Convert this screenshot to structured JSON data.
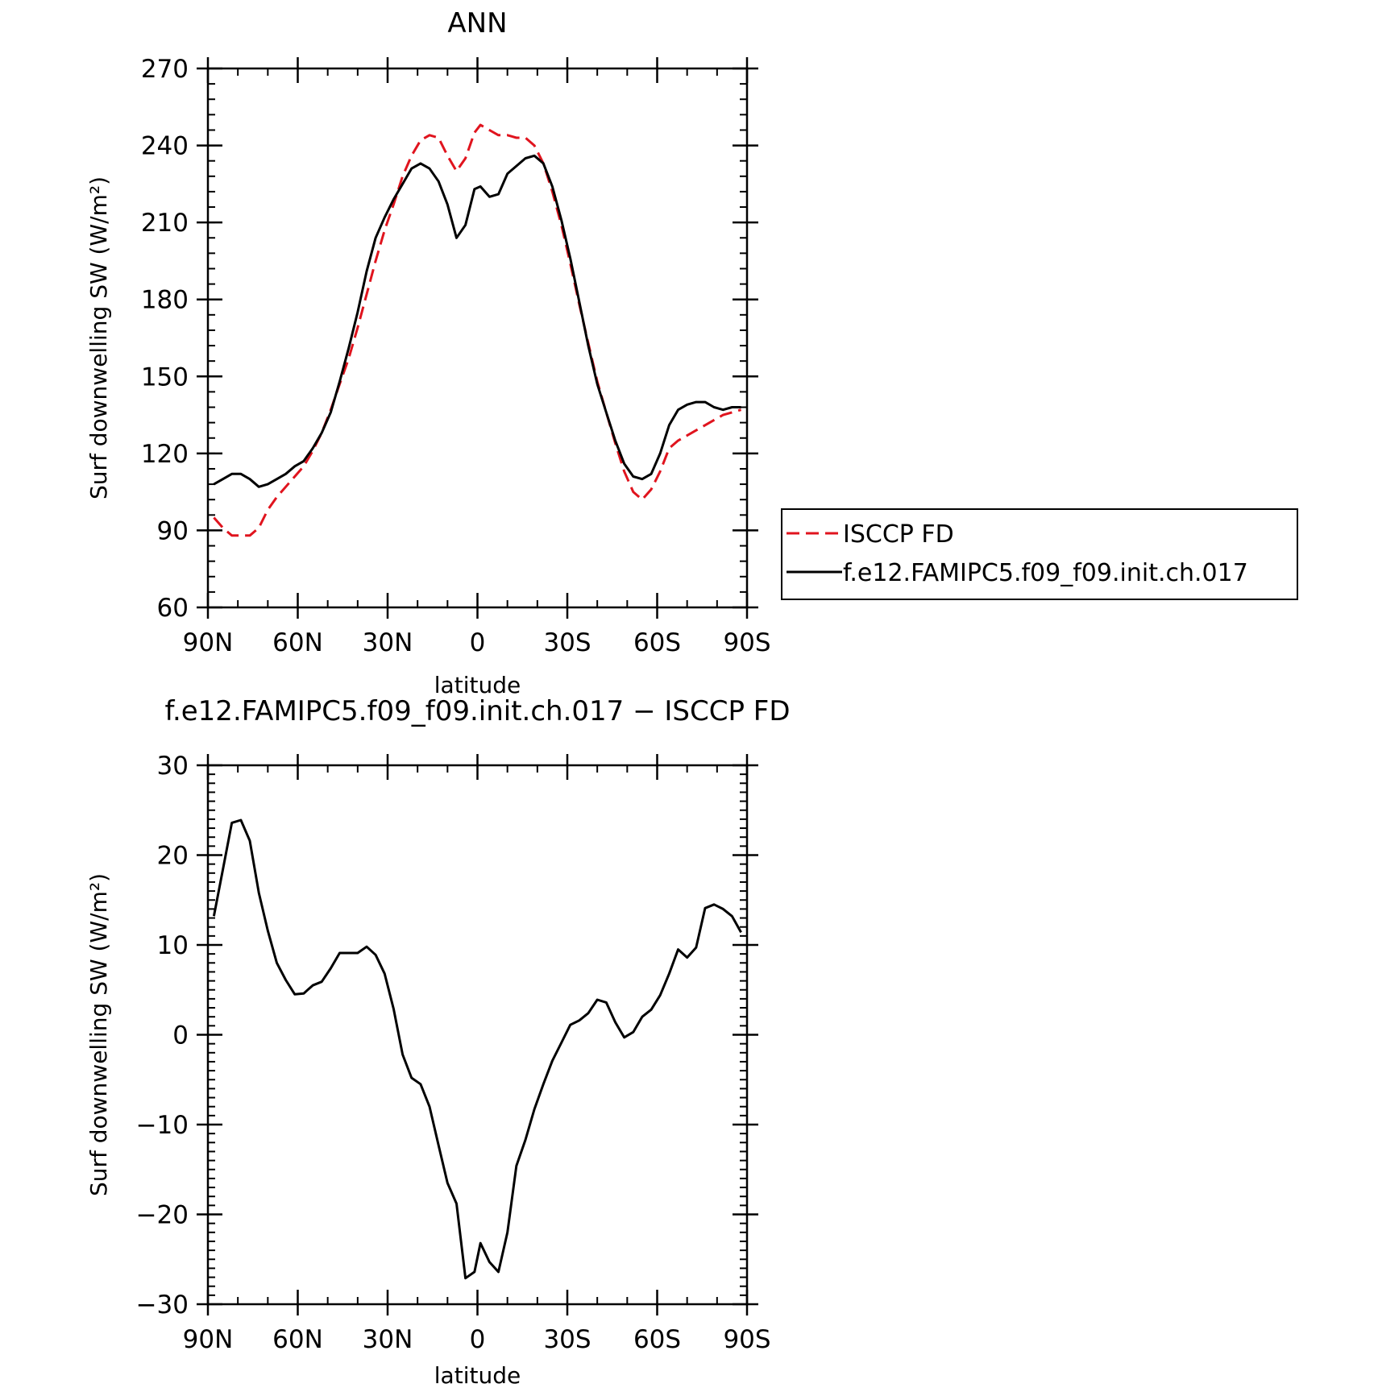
{
  "chart_data": [
    {
      "type": "line",
      "title": "ANN",
      "xlabel": "latitude",
      "ylabel": "Surf downwelling SW (W/m²)",
      "xlim": [
        90,
        -90
      ],
      "ylim": [
        60,
        270
      ],
      "xticks": [
        {
          "value": 90,
          "label": "90N"
        },
        {
          "value": 60,
          "label": "60N"
        },
        {
          "value": 30,
          "label": "30N"
        },
        {
          "value": 0,
          "label": "0"
        },
        {
          "value": -30,
          "label": "30S"
        },
        {
          "value": -60,
          "label": "60S"
        },
        {
          "value": -90,
          "label": "90S"
        }
      ],
      "yticks": [
        60,
        90,
        120,
        150,
        180,
        210,
        240,
        270
      ],
      "legend_position": "right, outside plot area",
      "series": [
        {
          "name": "ISCCP FD",
          "color": "#e0141e",
          "dash": "dashed",
          "x": [
            88,
            85,
            82,
            79,
            76,
            73,
            70,
            67,
            64,
            61,
            58,
            55,
            52,
            49,
            46,
            43,
            40,
            37,
            34,
            31,
            28,
            25,
            22,
            19,
            16,
            13,
            10,
            7,
            4,
            1,
            -1,
            -4,
            -7,
            -10,
            -13,
            -16,
            -19,
            -22,
            -25,
            -28,
            -31,
            -34,
            -37,
            -40,
            -43,
            -46,
            -49,
            -52,
            -55,
            -58,
            -61,
            -64,
            -67,
            -70,
            -73,
            -76,
            -79,
            -82,
            -85,
            -88
          ],
          "y": [
            95,
            91,
            88,
            88,
            88,
            91,
            98,
            103,
            107,
            111,
            115,
            121,
            128,
            137,
            147,
            157,
            169,
            182,
            195,
            207,
            217,
            228,
            236,
            242,
            244,
            243,
            236,
            230,
            235,
            245,
            248,
            246,
            244,
            244,
            243,
            243,
            240,
            233,
            222,
            209,
            194,
            178,
            163,
            148,
            136,
            124,
            113,
            105,
            102,
            106,
            113,
            122,
            125,
            127,
            129,
            131,
            133,
            135,
            136,
            137
          ]
        },
        {
          "name": "f.e12.FAMIPC5.f09_f09.init.ch.017",
          "color": "#000000",
          "dash": "solid",
          "x": [
            88,
            85,
            82,
            79,
            76,
            73,
            70,
            67,
            64,
            61,
            58,
            55,
            52,
            49,
            46,
            43,
            40,
            37,
            34,
            31,
            28,
            25,
            22,
            19,
            16,
            13,
            10,
            7,
            4,
            1,
            -1,
            -4,
            -7,
            -10,
            -13,
            -16,
            -19,
            -22,
            -25,
            -28,
            -31,
            -34,
            -37,
            -40,
            -43,
            -46,
            -49,
            -52,
            -55,
            -58,
            -61,
            -64,
            -67,
            -70,
            -73,
            -76,
            -79,
            -82,
            -85,
            -88
          ],
          "y": [
            108,
            110,
            112,
            112,
            110,
            107,
            108,
            110,
            112,
            115,
            117,
            122,
            128,
            136,
            148,
            161,
            175,
            191,
            204,
            212,
            219,
            225,
            231,
            233,
            231,
            226,
            217,
            204,
            209,
            223,
            224,
            220,
            221,
            229,
            232,
            235,
            236,
            233,
            224,
            211,
            196,
            179,
            162,
            147,
            136,
            125,
            116,
            111,
            110,
            112,
            120,
            131,
            137,
            139,
            140,
            140,
            138,
            137,
            138,
            138
          ]
        }
      ]
    },
    {
      "type": "line",
      "title": "f.e12.FAMIPC5.f09_f09.init.ch.017 − ISCCP FD",
      "xlabel": "latitude",
      "ylabel": "Surf downwelling SW (W/m²)",
      "xlim": [
        90,
        -90
      ],
      "ylim": [
        -30,
        30
      ],
      "xticks": [
        {
          "value": 90,
          "label": "90N"
        },
        {
          "value": 60,
          "label": "60N"
        },
        {
          "value": 30,
          "label": "30N"
        },
        {
          "value": 0,
          "label": "0"
        },
        {
          "value": -30,
          "label": "30S"
        },
        {
          "value": -60,
          "label": "60S"
        },
        {
          "value": -90,
          "label": "90S"
        }
      ],
      "yticks": [
        {
          "value": -30,
          "label": "−30"
        },
        {
          "value": -20,
          "label": "−20"
        },
        {
          "value": -10,
          "label": "−10"
        },
        {
          "value": 0,
          "label": "0"
        },
        {
          "value": 10,
          "label": "10"
        },
        {
          "value": 20,
          "label": "20"
        },
        {
          "value": 30,
          "label": "30"
        }
      ],
      "series": [
        {
          "color": "#000000",
          "dash": "solid",
          "x": [
            88,
            85,
            82,
            79,
            76,
            73,
            70,
            67,
            64,
            61,
            58,
            55,
            52,
            49,
            46,
            43,
            40,
            37,
            34,
            31,
            28,
            25,
            22,
            19,
            16,
            13,
            10,
            7,
            4,
            1,
            -1,
            -4,
            -7,
            -10,
            -13,
            -16,
            -19,
            -22,
            -25,
            -28,
            -31,
            -34,
            -37,
            -40,
            -43,
            -46,
            -49,
            -52,
            -55,
            -58,
            -61,
            -64,
            -67,
            -70,
            -73,
            -76,
            -79,
            -82,
            -85,
            -88
          ],
          "y": [
            13.2,
            18.4,
            23.6,
            23.9,
            21.6,
            15.8,
            11.6,
            8.0,
            6.1,
            4.5,
            4.6,
            5.5,
            5.9,
            7.4,
            9.1,
            9.1,
            9.1,
            9.8,
            8.9,
            6.8,
            2.9,
            -2.2,
            -4.8,
            -5.5,
            -8.0,
            -12.3,
            -16.5,
            -18.8,
            -27.1,
            -26.4,
            -23.2,
            -25.3,
            -26.4,
            -22.0,
            -14.6,
            -11.7,
            -8.3,
            -5.5,
            -2.9,
            -0.9,
            1.1,
            1.6,
            2.4,
            3.9,
            3.6,
            1.4,
            -0.3,
            0.3,
            2.0,
            2.8,
            4.4,
            6.8,
            9.5,
            8.6,
            9.7,
            14.1,
            14.5,
            14.0,
            13.2,
            11.4
          ]
        }
      ]
    }
  ]
}
